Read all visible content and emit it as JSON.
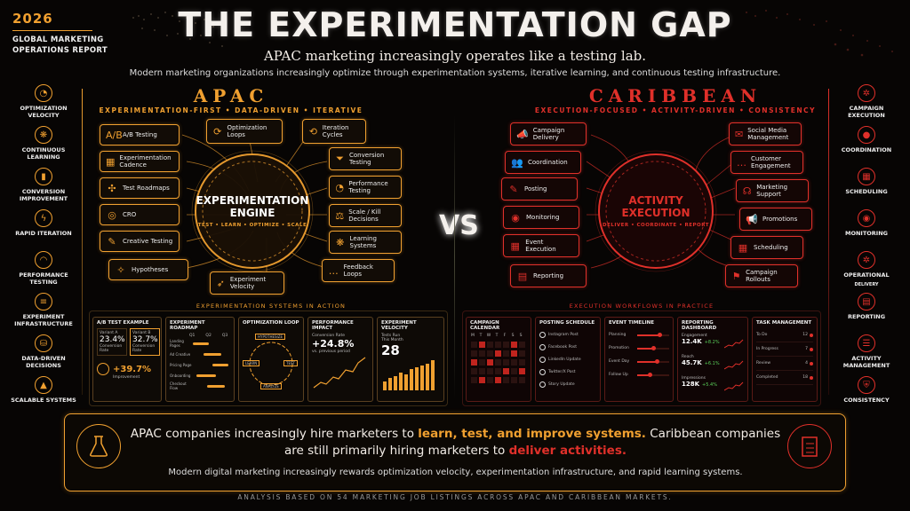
{
  "report": {
    "year": "2026",
    "name_line1": "GLOBAL MARKETING",
    "name_line2": "OPERATIONS REPORT"
  },
  "title": "THE EXPERIMENTATION GAP",
  "subtitle": "APAC marketing increasingly operates like a testing lab.",
  "description": "Modern marketing organizations increasingly optimize through experimentation systems, iterative learning, and continuous testing infrastructure.",
  "colors": {
    "apac": "#f0a030",
    "caribbean": "#e0302a",
    "background": "#070504"
  },
  "left_sidebar": [
    {
      "label": "OPTIMIZATION VELOCITY",
      "icon": "speedometer-icon"
    },
    {
      "label": "CONTINUOUS LEARNING",
      "icon": "brain-icon"
    },
    {
      "label": "CONVERSION IMPROVEMENT",
      "icon": "bar-chart-icon"
    },
    {
      "label": "RAPID ITERATION",
      "icon": "lightning-icon"
    },
    {
      "label": "PERFORMANCE TESTING",
      "icon": "chart-icon"
    },
    {
      "label": "EXPERIMENT INFRASTRUCTURE",
      "icon": "server-icon"
    },
    {
      "label": "DATA-DRIVEN DECISIONS",
      "icon": "database-icon"
    },
    {
      "label": "SCALABLE SYSTEMS",
      "icon": "growth-icon"
    }
  ],
  "right_sidebar": [
    {
      "label": "CAMPAIGN EXECUTION",
      "icon": "gear-icon"
    },
    {
      "label": "COORDINATION",
      "icon": "people-icon"
    },
    {
      "label": "SCHEDULING",
      "icon": "calendar-icon"
    },
    {
      "label": "MONITORING",
      "icon": "eye-icon"
    },
    {
      "label": "OPERATIONAL",
      "sub": "DELIVERY",
      "icon": "cog-icon"
    },
    {
      "label": "REPORTING",
      "icon": "document-icon"
    },
    {
      "label": "ACTIVITY MANAGEMENT",
      "icon": "checklist-icon"
    },
    {
      "label": "CONSISTENCY",
      "icon": "shield-icon"
    }
  ],
  "apac": {
    "title": "APAC",
    "tagline": "EXPERIMENTATION-FIRST  •  DATA-DRIVEN  •  ITERATIVE",
    "engine_title_1": "EXPERIMENTATION",
    "engine_title_2": "ENGINE",
    "engine_sub": "TEST • LEARN • OPTIMIZE • SCALE",
    "left_items": [
      {
        "label": "A/B Testing",
        "icon": "ab-icon",
        "glyph": "A/B"
      },
      {
        "label": "Experimentation Cadence",
        "icon": "calendar-icon",
        "glyph": "▦"
      },
      {
        "label": "Test Roadmaps",
        "icon": "roadmap-icon",
        "glyph": "✣"
      },
      {
        "label": "CRO",
        "icon": "target-icon",
        "glyph": "◎"
      },
      {
        "label": "Creative Testing",
        "icon": "pencil-icon",
        "glyph": "✎"
      },
      {
        "label": "Hypotheses",
        "icon": "lightbulb-icon",
        "glyph": "✧"
      }
    ],
    "top_items": [
      {
        "label": "Optimization Loops",
        "icon": "loop-icon",
        "glyph": "⟳"
      },
      {
        "label": "Iteration Cycles",
        "icon": "cycle-icon",
        "glyph": "⟲"
      }
    ],
    "right_items": [
      {
        "label": "Conversion Testing",
        "icon": "funnel-icon",
        "glyph": "⏷"
      },
      {
        "label": "Performance Testing",
        "icon": "gauge-icon",
        "glyph": "◔"
      },
      {
        "label": "Scale / Kill Decisions",
        "icon": "scale-icon",
        "glyph": "⚖"
      },
      {
        "label": "Learning Systems",
        "icon": "brain-icon",
        "glyph": "❋"
      },
      {
        "label": "Feedback Loops",
        "icon": "chat-icon",
        "glyph": "…"
      }
    ],
    "bottom_item": {
      "label": "Experiment Velocity",
      "icon": "rocket-icon",
      "glyph": "➶"
    },
    "section_label": "EXPERIMENTATION SYSTEMS IN ACTION",
    "ab_test": {
      "title": "A/B TEST EXAMPLE",
      "variant_a": "Variant A",
      "variant_a_value": "23.4%",
      "variant_b": "Variant B",
      "variant_b_value": "32.7%",
      "metric": "Conversion Rate",
      "improvement": "+39.7%",
      "improvement_label": "Improvement"
    },
    "roadmap": {
      "title": "EXPERIMENT ROADMAP",
      "quarters": [
        "Q1",
        "Q2",
        "Q3"
      ],
      "rows": [
        "Landing Pages",
        "Ad Creative",
        "Pricing Page",
        "Onboarding",
        "Checkout Flow"
      ]
    },
    "loop": {
      "title": "OPTIMIZATION LOOP",
      "steps": [
        "HYPOTHESIZE",
        "TEST",
        "ANALYZE",
        "LEARN"
      ]
    },
    "impact": {
      "title": "PERFORMANCE IMPACT",
      "metric": "Conversion Rate",
      "value": "+24.8%",
      "note": "vs. previous period"
    },
    "velocity": {
      "title": "EXPERIMENT VELOCITY",
      "label_1": "Tests Run",
      "label_2": "This Month",
      "value": "28"
    }
  },
  "caribbean": {
    "title": "CARIBBEAN",
    "tagline": "EXECUTION-FOCUSED  •  ACTIVITY-DRIVEN  •  CONSISTENCY",
    "engine_title_1": "ACTIVITY",
    "engine_title_2": "EXECUTION",
    "engine_sub": "DELIVER • COORDINATE • REPORT",
    "left_items": [
      {
        "label": "Campaign Delivery",
        "icon": "megaphone-icon",
        "glyph": "📣"
      },
      {
        "label": "Coordination",
        "icon": "people-icon",
        "glyph": "👥"
      },
      {
        "label": "Posting",
        "icon": "edit-icon",
        "glyph": "✎"
      },
      {
        "label": "Monitoring",
        "icon": "eye-icon",
        "glyph": "◉"
      },
      {
        "label": "Event Execution",
        "icon": "calendar-icon",
        "glyph": "▦"
      },
      {
        "label": "Reporting",
        "icon": "report-icon",
        "glyph": "▤"
      }
    ],
    "right_items": [
      {
        "label": "Social Media Management",
        "icon": "social-icon",
        "glyph": "✉"
      },
      {
        "label": "Customer Engagement",
        "icon": "chat-icon",
        "glyph": "…"
      },
      {
        "label": "Marketing Support",
        "icon": "headset-icon",
        "glyph": "☊"
      },
      {
        "label": "Promotions",
        "icon": "megaphone-icon",
        "glyph": "📢"
      },
      {
        "label": "Scheduling",
        "icon": "calendar-icon",
        "glyph": "▦"
      },
      {
        "label": "Campaign Rollouts",
        "icon": "flag-icon",
        "glyph": "⚑"
      }
    ],
    "section_label": "EXECUTION WORKFLOWS IN PRACTICE",
    "calendar": {
      "title": "CAMPAIGN CALENDAR",
      "days": [
        "M",
        "T",
        "W",
        "T",
        "F",
        "S",
        "S"
      ]
    },
    "posting": {
      "title": "POSTING SCHEDULE",
      "items": [
        "Instagram Post",
        "Facebook Post",
        "LinkedIn Update",
        "Twitter/X Post",
        "Story Update"
      ]
    },
    "timeline": {
      "title": "EVENT TIMELINE",
      "items": [
        "Planning",
        "Promotion",
        "Event Day",
        "Follow Up"
      ]
    },
    "dashboard": {
      "title": "REPORTING DASHBOARD",
      "metrics": [
        {
          "name": "Engagement",
          "value": "12.4K",
          "change": "+8.2%"
        },
        {
          "name": "Reach",
          "value": "45.7K",
          "change": "+6.1%"
        },
        {
          "name": "Impressions",
          "value": "128K",
          "change": "+5.4%"
        }
      ]
    },
    "tasks": {
      "title": "TASK MANAGEMENT",
      "rows": [
        {
          "name": "To Do",
          "count": "12"
        },
        {
          "name": "In Progress",
          "count": "7"
        },
        {
          "name": "Review",
          "count": "4"
        },
        {
          "name": "Completed",
          "count": "18"
        }
      ]
    }
  },
  "vs": "VS",
  "summary": {
    "part1": "APAC companies increasingly hire marketers to ",
    "highlight1": "learn, test, and improve systems.",
    "part2": " Caribbean companies are still primarily hiring marketers to ",
    "highlight2": "deliver activities.",
    "note": "Modern digital marketing increasingly rewards optimization velocity, experimentation infrastructure, and rapid learning systems."
  },
  "footer": "ANALYSIS BASED ON 54 MARKETING JOB LISTINGS ACROSS APAC AND CARIBBEAN MARKETS."
}
